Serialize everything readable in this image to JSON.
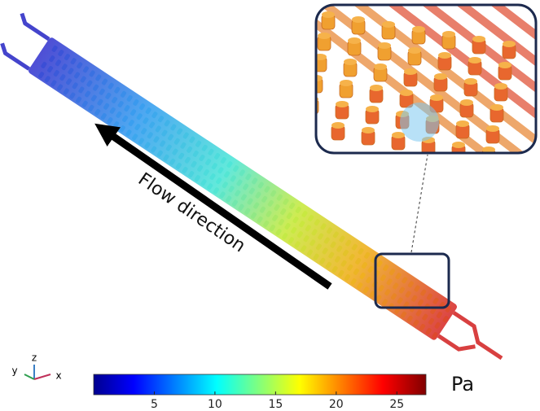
{
  "annotation": "Flow direction",
  "axes_triad": {
    "x": "x",
    "y": "y",
    "z": "z"
  },
  "colorbar": {
    "unit": "Pa",
    "range": [
      0,
      27.4
    ],
    "ticks": [
      5,
      10,
      15,
      20,
      25
    ]
  }
}
